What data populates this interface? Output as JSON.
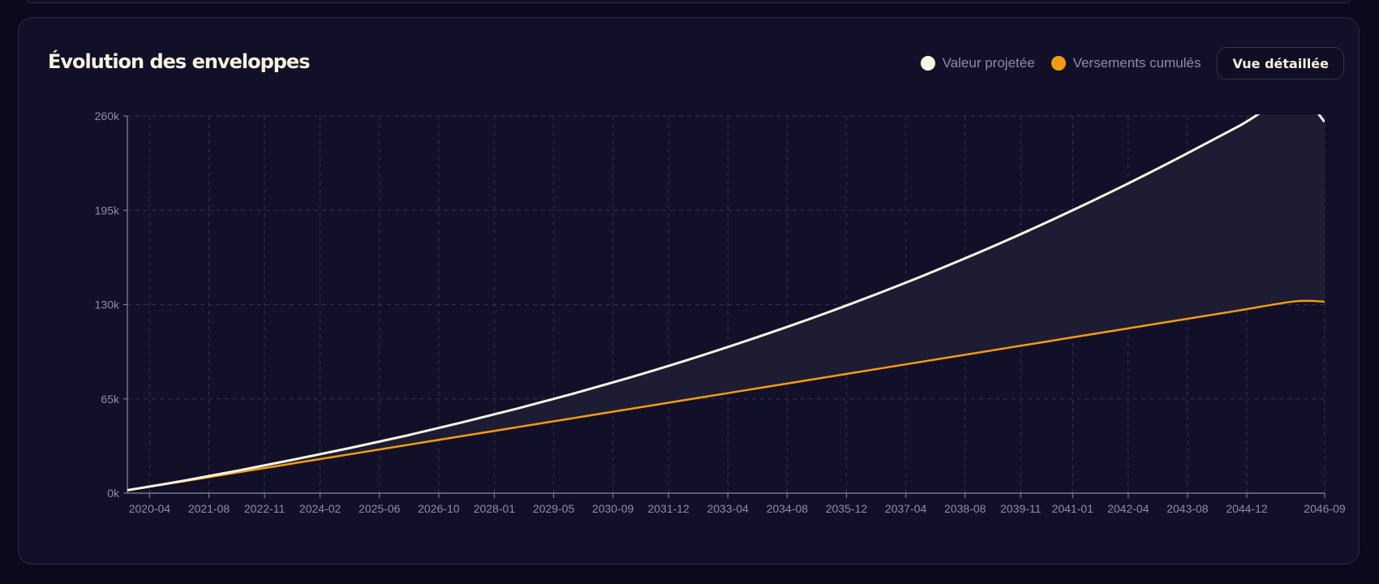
{
  "panel": {
    "title": "Évolution des enveloppes",
    "detail_button_label": "Vue détaillée"
  },
  "legend": [
    {
      "label": "Valeur projetée",
      "color": "#fbf5e4"
    },
    {
      "label": "Versements cumulés",
      "color": "#f39c12"
    }
  ],
  "colors": {
    "background": "#0b0a1c",
    "card": "#121029",
    "grid": "#34324c",
    "axis": "#8a87a6",
    "band_fill": "#1e1c32"
  },
  "chart_data": {
    "type": "line",
    "xlabel": "",
    "ylabel": "",
    "ylim": [
      0,
      260000
    ],
    "y_ticks": [
      "0k",
      "65k",
      "130k",
      "195k",
      "260k"
    ],
    "x_ticks": [
      "2020-04",
      "2021-08",
      "2022-11",
      "2024-02",
      "2025-06",
      "2026-10",
      "2028-01",
      "2029-05",
      "2030-09",
      "2031-12",
      "2033-04",
      "2034-08",
      "2035-12",
      "2037-04",
      "2038-08",
      "2039-11",
      "2041-01",
      "2042-04",
      "2043-08",
      "2044-12",
      "2046-09"
    ],
    "x": [
      "2019-10",
      "2021-01",
      "2022-04",
      "2023-07",
      "2024-10",
      "2026-01",
      "2027-04",
      "2028-07",
      "2029-10",
      "2031-01",
      "2032-04",
      "2033-07",
      "2034-10",
      "2036-01",
      "2037-04",
      "2038-07",
      "2039-10",
      "2041-01",
      "2042-04",
      "2043-07",
      "2044-10",
      "2046-01",
      "2046-09"
    ],
    "grid": true,
    "legend_position": "top-right",
    "series": [
      {
        "name": "Valeur projetée",
        "color": "#fbf5e4",
        "values": [
          2000,
          8500,
          15600,
          23200,
          31100,
          39500,
          48600,
          58200,
          68400,
          79300,
          90900,
          103300,
          116400,
          130300,
          145100,
          160800,
          177400,
          195000,
          213500,
          233000,
          253200,
          274000,
          256000
        ]
      },
      {
        "name": "Versements cumulés",
        "color": "#f39c12",
        "values": [
          2000,
          8100,
          14400,
          20600,
          26800,
          33000,
          39200,
          45400,
          51600,
          57800,
          64000,
          70200,
          76400,
          82600,
          88800,
          95000,
          101200,
          107400,
          113600,
          119800,
          126000,
          132200,
          132000
        ]
      }
    ]
  }
}
